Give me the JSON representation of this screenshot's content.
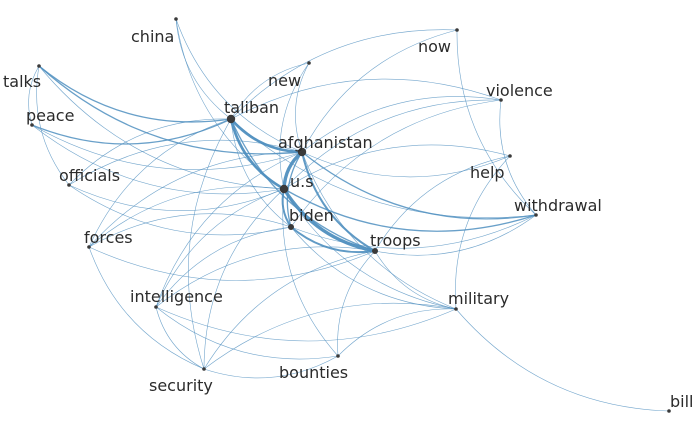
{
  "colors": {
    "edge": "#4f8fbf",
    "node": "#3a3a3a",
    "label": "#2b2b2b",
    "background": "#ffffff"
  },
  "nodes": [
    {
      "id": "china",
      "label": "china",
      "weight": 1
    },
    {
      "id": "now",
      "label": "now",
      "weight": 1
    },
    {
      "id": "talks",
      "label": "talks",
      "weight": 1
    },
    {
      "id": "new",
      "label": "new",
      "weight": 1
    },
    {
      "id": "violence",
      "label": "violence",
      "weight": 1
    },
    {
      "id": "peace",
      "label": "peace",
      "weight": 1
    },
    {
      "id": "taliban",
      "label": "taliban",
      "weight": 3
    },
    {
      "id": "afghanistan",
      "label": "afghanistan",
      "weight": 3
    },
    {
      "id": "help",
      "label": "help",
      "weight": 1
    },
    {
      "id": "officials",
      "label": "officials",
      "weight": 1
    },
    {
      "id": "us",
      "label": "u.s",
      "weight": 3
    },
    {
      "id": "withdrawal",
      "label": "withdrawal",
      "weight": 1
    },
    {
      "id": "biden",
      "label": "biden",
      "weight": 2
    },
    {
      "id": "forces",
      "label": "forces",
      "weight": 1
    },
    {
      "id": "troops",
      "label": "troops",
      "weight": 2
    },
    {
      "id": "intelligence",
      "label": "intelligence",
      "weight": 1
    },
    {
      "id": "military",
      "label": "military",
      "weight": 1
    },
    {
      "id": "security",
      "label": "security",
      "weight": 1
    },
    {
      "id": "bounties",
      "label": "bounties",
      "weight": 1
    },
    {
      "id": "bill",
      "label": "bill",
      "weight": 1
    }
  ],
  "edges": [
    [
      "china",
      "taliban",
      1
    ],
    [
      "china",
      "afghanistan",
      1
    ],
    [
      "china",
      "us",
      1
    ],
    [
      "now",
      "afghanistan",
      1
    ],
    [
      "now",
      "withdrawal",
      1
    ],
    [
      "now",
      "taliban",
      1
    ],
    [
      "talks",
      "taliban",
      2
    ],
    [
      "talks",
      "peace",
      1
    ],
    [
      "talks",
      "afghanistan",
      2
    ],
    [
      "talks",
      "us",
      1
    ],
    [
      "talks",
      "officials",
      1
    ],
    [
      "new",
      "taliban",
      1
    ],
    [
      "new",
      "us",
      1
    ],
    [
      "new",
      "afghanistan",
      1
    ],
    [
      "violence",
      "afghanistan",
      1
    ],
    [
      "violence",
      "taliban",
      1
    ],
    [
      "violence",
      "withdrawal",
      1
    ],
    [
      "violence",
      "us",
      1
    ],
    [
      "violence",
      "biden",
      1
    ],
    [
      "peace",
      "taliban",
      2
    ],
    [
      "peace",
      "afghanistan",
      1
    ],
    [
      "peace",
      "us",
      1
    ],
    [
      "taliban",
      "afghanistan",
      4
    ],
    [
      "taliban",
      "us",
      4
    ],
    [
      "taliban",
      "troops",
      2
    ],
    [
      "taliban",
      "biden",
      1
    ],
    [
      "taliban",
      "withdrawal",
      1
    ],
    [
      "taliban",
      "officials",
      1
    ],
    [
      "taliban",
      "forces",
      1
    ],
    [
      "taliban",
      "security",
      1
    ],
    [
      "afghanistan",
      "us",
      5
    ],
    [
      "afghanistan",
      "troops",
      3
    ],
    [
      "afghanistan",
      "withdrawal",
      2
    ],
    [
      "afghanistan",
      "biden",
      2
    ],
    [
      "afghanistan",
      "help",
      1
    ],
    [
      "afghanistan",
      "officials",
      1
    ],
    [
      "afghanistan",
      "forces",
      1
    ],
    [
      "afghanistan",
      "military",
      1
    ],
    [
      "afghanistan",
      "intelligence",
      1
    ],
    [
      "help",
      "us",
      1
    ],
    [
      "help",
      "military",
      1
    ],
    [
      "help",
      "troops",
      1
    ],
    [
      "officials",
      "us",
      1
    ],
    [
      "officials",
      "biden",
      1
    ],
    [
      "us",
      "troops",
      5
    ],
    [
      "us",
      "biden",
      3
    ],
    [
      "us",
      "withdrawal",
      2
    ],
    [
      "us",
      "forces",
      1
    ],
    [
      "us",
      "military",
      1
    ],
    [
      "us",
      "intelligence",
      1
    ],
    [
      "us",
      "security",
      1
    ],
    [
      "us",
      "bounties",
      1
    ],
    [
      "biden",
      "troops",
      3
    ],
    [
      "biden",
      "withdrawal",
      1
    ],
    [
      "biden",
      "forces",
      1
    ],
    [
      "biden",
      "military",
      1
    ],
    [
      "biden",
      "intelligence",
      1
    ],
    [
      "forces",
      "troops",
      1
    ],
    [
      "forces",
      "security",
      1
    ],
    [
      "troops",
      "withdrawal",
      1
    ],
    [
      "troops",
      "military",
      1
    ],
    [
      "troops",
      "intelligence",
      1
    ],
    [
      "troops",
      "bounties",
      1
    ],
    [
      "troops",
      "security",
      1
    ],
    [
      "intelligence",
      "military",
      1
    ],
    [
      "intelligence",
      "bounties",
      1
    ],
    [
      "intelligence",
      "security",
      1
    ],
    [
      "military",
      "security",
      1
    ],
    [
      "military",
      "bounties",
      1
    ],
    [
      "military",
      "bill",
      1
    ],
    [
      "security",
      "bounties",
      1
    ]
  ]
}
